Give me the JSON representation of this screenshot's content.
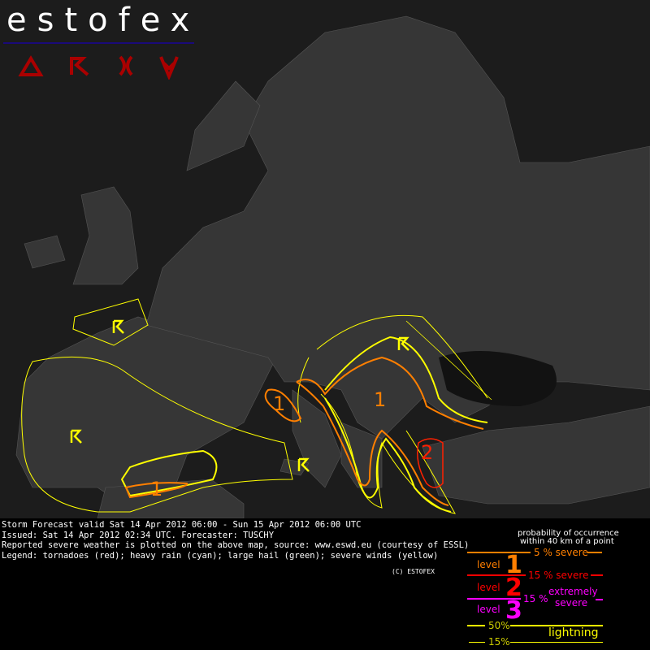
{
  "logo": {
    "text": "estofex",
    "icons": [
      "tornado-icon",
      "hail-icon",
      "rain-icon",
      "wind-icon"
    ]
  },
  "map": {
    "level_labels": [
      "1",
      "1",
      "1",
      "2"
    ],
    "colors": {
      "level1": "#ff7f00",
      "level2": "#ff0000",
      "level3": "#ff00ff",
      "lightning": "#ffff00",
      "icons": "#aa0000"
    }
  },
  "info": {
    "line1": "Storm Forecast valid Sat 14 Apr 2012 06:00 - Sun 15 Apr 2012 06:00 UTC",
    "line2": "Issued: Sat 14 Apr 2012 02:34 UTC. Forecaster: TUSCHY",
    "line3": "Reported severe weather is plotted on the above map, source: www.eswd.eu (courtesy of ESSL)",
    "line4": "Legend: tornadoes (red); heavy rain (cyan); large hail (green); severe winds (yellow)",
    "copyright": "(C) ESTOFEX"
  },
  "legend": {
    "title1": "probability of occurrence",
    "title2": "within 40 km of a point",
    "sev5": "5 % severe",
    "sev15": "15 % severe",
    "ext15": "15 %",
    "extremely": "extremely",
    "severe": "severe",
    "level_word": "level",
    "level1": "1",
    "level2": "2",
    "level3": "3",
    "light50": "50%",
    "light15": "15%",
    "lightning": "lightning"
  }
}
